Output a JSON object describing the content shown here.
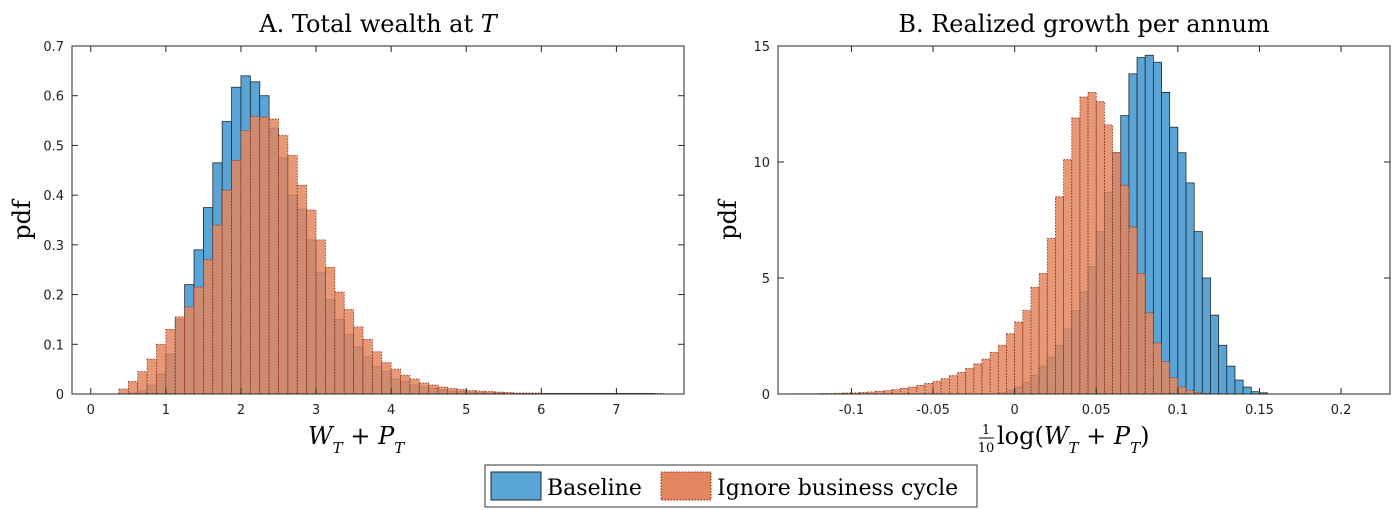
{
  "colors": {
    "baseline_fill": "#5aa5d6",
    "baseline_edge": "#1f2a33",
    "ignore_fill": "#e2865f",
    "ignore_fill_opacity": 0.85,
    "ignore_edge": "#8a2a12",
    "axis": "#262626"
  },
  "legend": {
    "placement": "bottom-center",
    "items": [
      {
        "label": "Baseline",
        "style": "solid-edge",
        "color_key": "baseline"
      },
      {
        "label": "Ignore business cycle",
        "style": "dotted-edge",
        "color_key": "ignore"
      }
    ]
  },
  "chart_data": [
    {
      "type": "bar",
      "title": "A. Total wealth at ",
      "title_math": "T",
      "ylabel": "pdf",
      "xlabel": {
        "parts": [
          "W",
          "T",
          " + ",
          "P",
          "T"
        ]
      },
      "xlim": [
        -0.25,
        7.9
      ],
      "ylim": [
        0,
        0.7
      ],
      "xticks": [
        0,
        1,
        2,
        3,
        4,
        5,
        6,
        7
      ],
      "yticks": [
        0,
        0.1,
        0.2,
        0.3,
        0.4,
        0.5,
        0.6,
        0.7
      ],
      "xtick_labels": [
        "0",
        "1",
        "2",
        "3",
        "4",
        "5",
        "6",
        "7"
      ],
      "ytick_labels": [
        "0",
        "0.1",
        "0.2",
        "0.3",
        "0.4",
        "0.5",
        "0.6",
        "0.7"
      ],
      "grid": false,
      "bin_width": 0.125,
      "series": [
        {
          "name": "Baseline",
          "bin_start": 0.5,
          "values": [
            0.002,
            0.006,
            0.018,
            0.04,
            0.08,
            0.15,
            0.22,
            0.29,
            0.375,
            0.465,
            0.548,
            0.617,
            0.64,
            0.628,
            0.6,
            0.535,
            0.475,
            0.4,
            0.372,
            0.31,
            0.245,
            0.19,
            0.15,
            0.12,
            0.095,
            0.075,
            0.055,
            0.045,
            0.03,
            0.025,
            0.018,
            0.014,
            0.011,
            0.008,
            0.006,
            0.005,
            0.004,
            0.003,
            0.002,
            0.002,
            0.001,
            0.001,
            0.001,
            0.001,
            0.001,
            0.001,
            0.001,
            0.001,
            0.001,
            0.001,
            0.001,
            0.001,
            0.001,
            0.001,
            0.001,
            0.001
          ]
        },
        {
          "name": "Ignore business cycle",
          "bin_start": 0.375,
          "values": [
            0.01,
            0.025,
            0.045,
            0.07,
            0.1,
            0.13,
            0.155,
            0.175,
            0.215,
            0.27,
            0.34,
            0.41,
            0.47,
            0.53,
            0.558,
            0.557,
            0.553,
            0.52,
            0.48,
            0.42,
            0.37,
            0.31,
            0.255,
            0.205,
            0.17,
            0.135,
            0.11,
            0.085,
            0.063,
            0.05,
            0.038,
            0.03,
            0.022,
            0.018,
            0.014,
            0.011,
            0.009,
            0.007,
            0.006,
            0.005,
            0.004,
            0.003,
            0.002,
            0.002,
            0.002,
            0.001,
            0.001,
            0.001,
            0.001,
            0.001,
            0.001,
            0.001,
            0.001,
            0.001,
            0.001,
            0.001,
            0.001,
            0.001
          ]
        }
      ]
    },
    {
      "type": "bar",
      "title": "B. Realized growth per annum",
      "ylabel": "pdf",
      "xlabel": {
        "frac_num": "1",
        "frac_den": "10",
        "text": " log(",
        "parts": [
          "W",
          "T",
          " + ",
          "P",
          "T"
        ],
        "close": ")"
      },
      "xlim": [
        -0.145,
        0.23
      ],
      "ylim": [
        0,
        15
      ],
      "xticks": [
        -0.1,
        -0.05,
        0,
        0.05,
        0.1,
        0.15,
        0.2
      ],
      "yticks": [
        0,
        5,
        10,
        15
      ],
      "xtick_labels": [
        "-0.1",
        "-0.05",
        "0",
        "0.05",
        "0.1",
        "0.15",
        "0.2"
      ],
      "ytick_labels": [
        "0",
        "5",
        "10",
        "15"
      ],
      "grid": false,
      "bin_width": 0.005,
      "series": [
        {
          "name": "Baseline",
          "bin_start": -0.01,
          "values": [
            0.05,
            0.15,
            0.3,
            0.5,
            0.8,
            1.2,
            1.6,
            2.1,
            2.8,
            3.6,
            4.4,
            5.5,
            7.0,
            8.7,
            10.4,
            12.0,
            13.8,
            14.5,
            14.6,
            14.3,
            13.0,
            11.5,
            10.4,
            9.1,
            7.0,
            5.0,
            3.4,
            2.1,
            1.2,
            0.6,
            0.3,
            0.1,
            0.05
          ]
        },
        {
          "name": "Ignore business cycle",
          "bin_start": -0.14,
          "values": [
            0.01,
            0.01,
            0.01,
            0.01,
            0.02,
            0.02,
            0.03,
            0.04,
            0.05,
            0.07,
            0.09,
            0.12,
            0.15,
            0.19,
            0.24,
            0.3,
            0.37,
            0.45,
            0.55,
            0.66,
            0.79,
            0.93,
            1.1,
            1.3,
            1.5,
            1.8,
            2.1,
            2.6,
            3.1,
            3.6,
            4.6,
            5.2,
            6.7,
            8.5,
            10.1,
            11.9,
            12.8,
            13.0,
            12.6,
            11.6,
            10.4,
            9.0,
            7.2,
            5.2,
            3.5,
            2.2,
            1.4,
            0.7,
            0.3,
            0.15,
            0.07,
            0.02
          ]
        }
      ]
    }
  ]
}
